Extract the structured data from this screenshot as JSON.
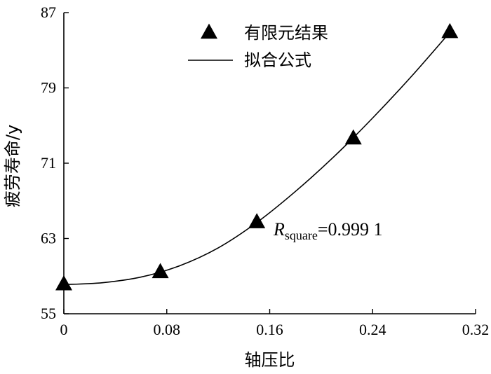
{
  "chart_data": {
    "type": "scatter",
    "xlabel": "轴压比",
    "ylabel": "疲劳寿命/y",
    "xlim": [
      0,
      0.32
    ],
    "ylim": [
      55,
      87
    ],
    "x_ticks": [
      "0",
      "0.08",
      "0.16",
      "0.24",
      "0.32"
    ],
    "y_ticks": [
      "55",
      "63",
      "71",
      "79",
      "87"
    ],
    "grid": false,
    "legend_position": "top-right",
    "series": [
      {
        "name": "有限元结果",
        "marker": "triangle",
        "x": [
          0,
          0.075,
          0.15,
          0.225,
          0.3
        ],
        "y": [
          58.1,
          59.4,
          64.7,
          73.6,
          84.9
        ]
      },
      {
        "name": "拟合公式",
        "style": "line",
        "x": [
          0,
          0.03,
          0.06,
          0.09,
          0.12,
          0.15,
          0.18,
          0.21,
          0.24,
          0.27,
          0.3
        ],
        "y": [
          58.1,
          58.3,
          58.9,
          60.1,
          62.0,
          64.7,
          68.0,
          71.7,
          75.8,
          80.2,
          84.9
        ]
      }
    ],
    "annotation": {
      "symbol": "R",
      "subscript": "square",
      "text": "=0.999 1"
    }
  }
}
